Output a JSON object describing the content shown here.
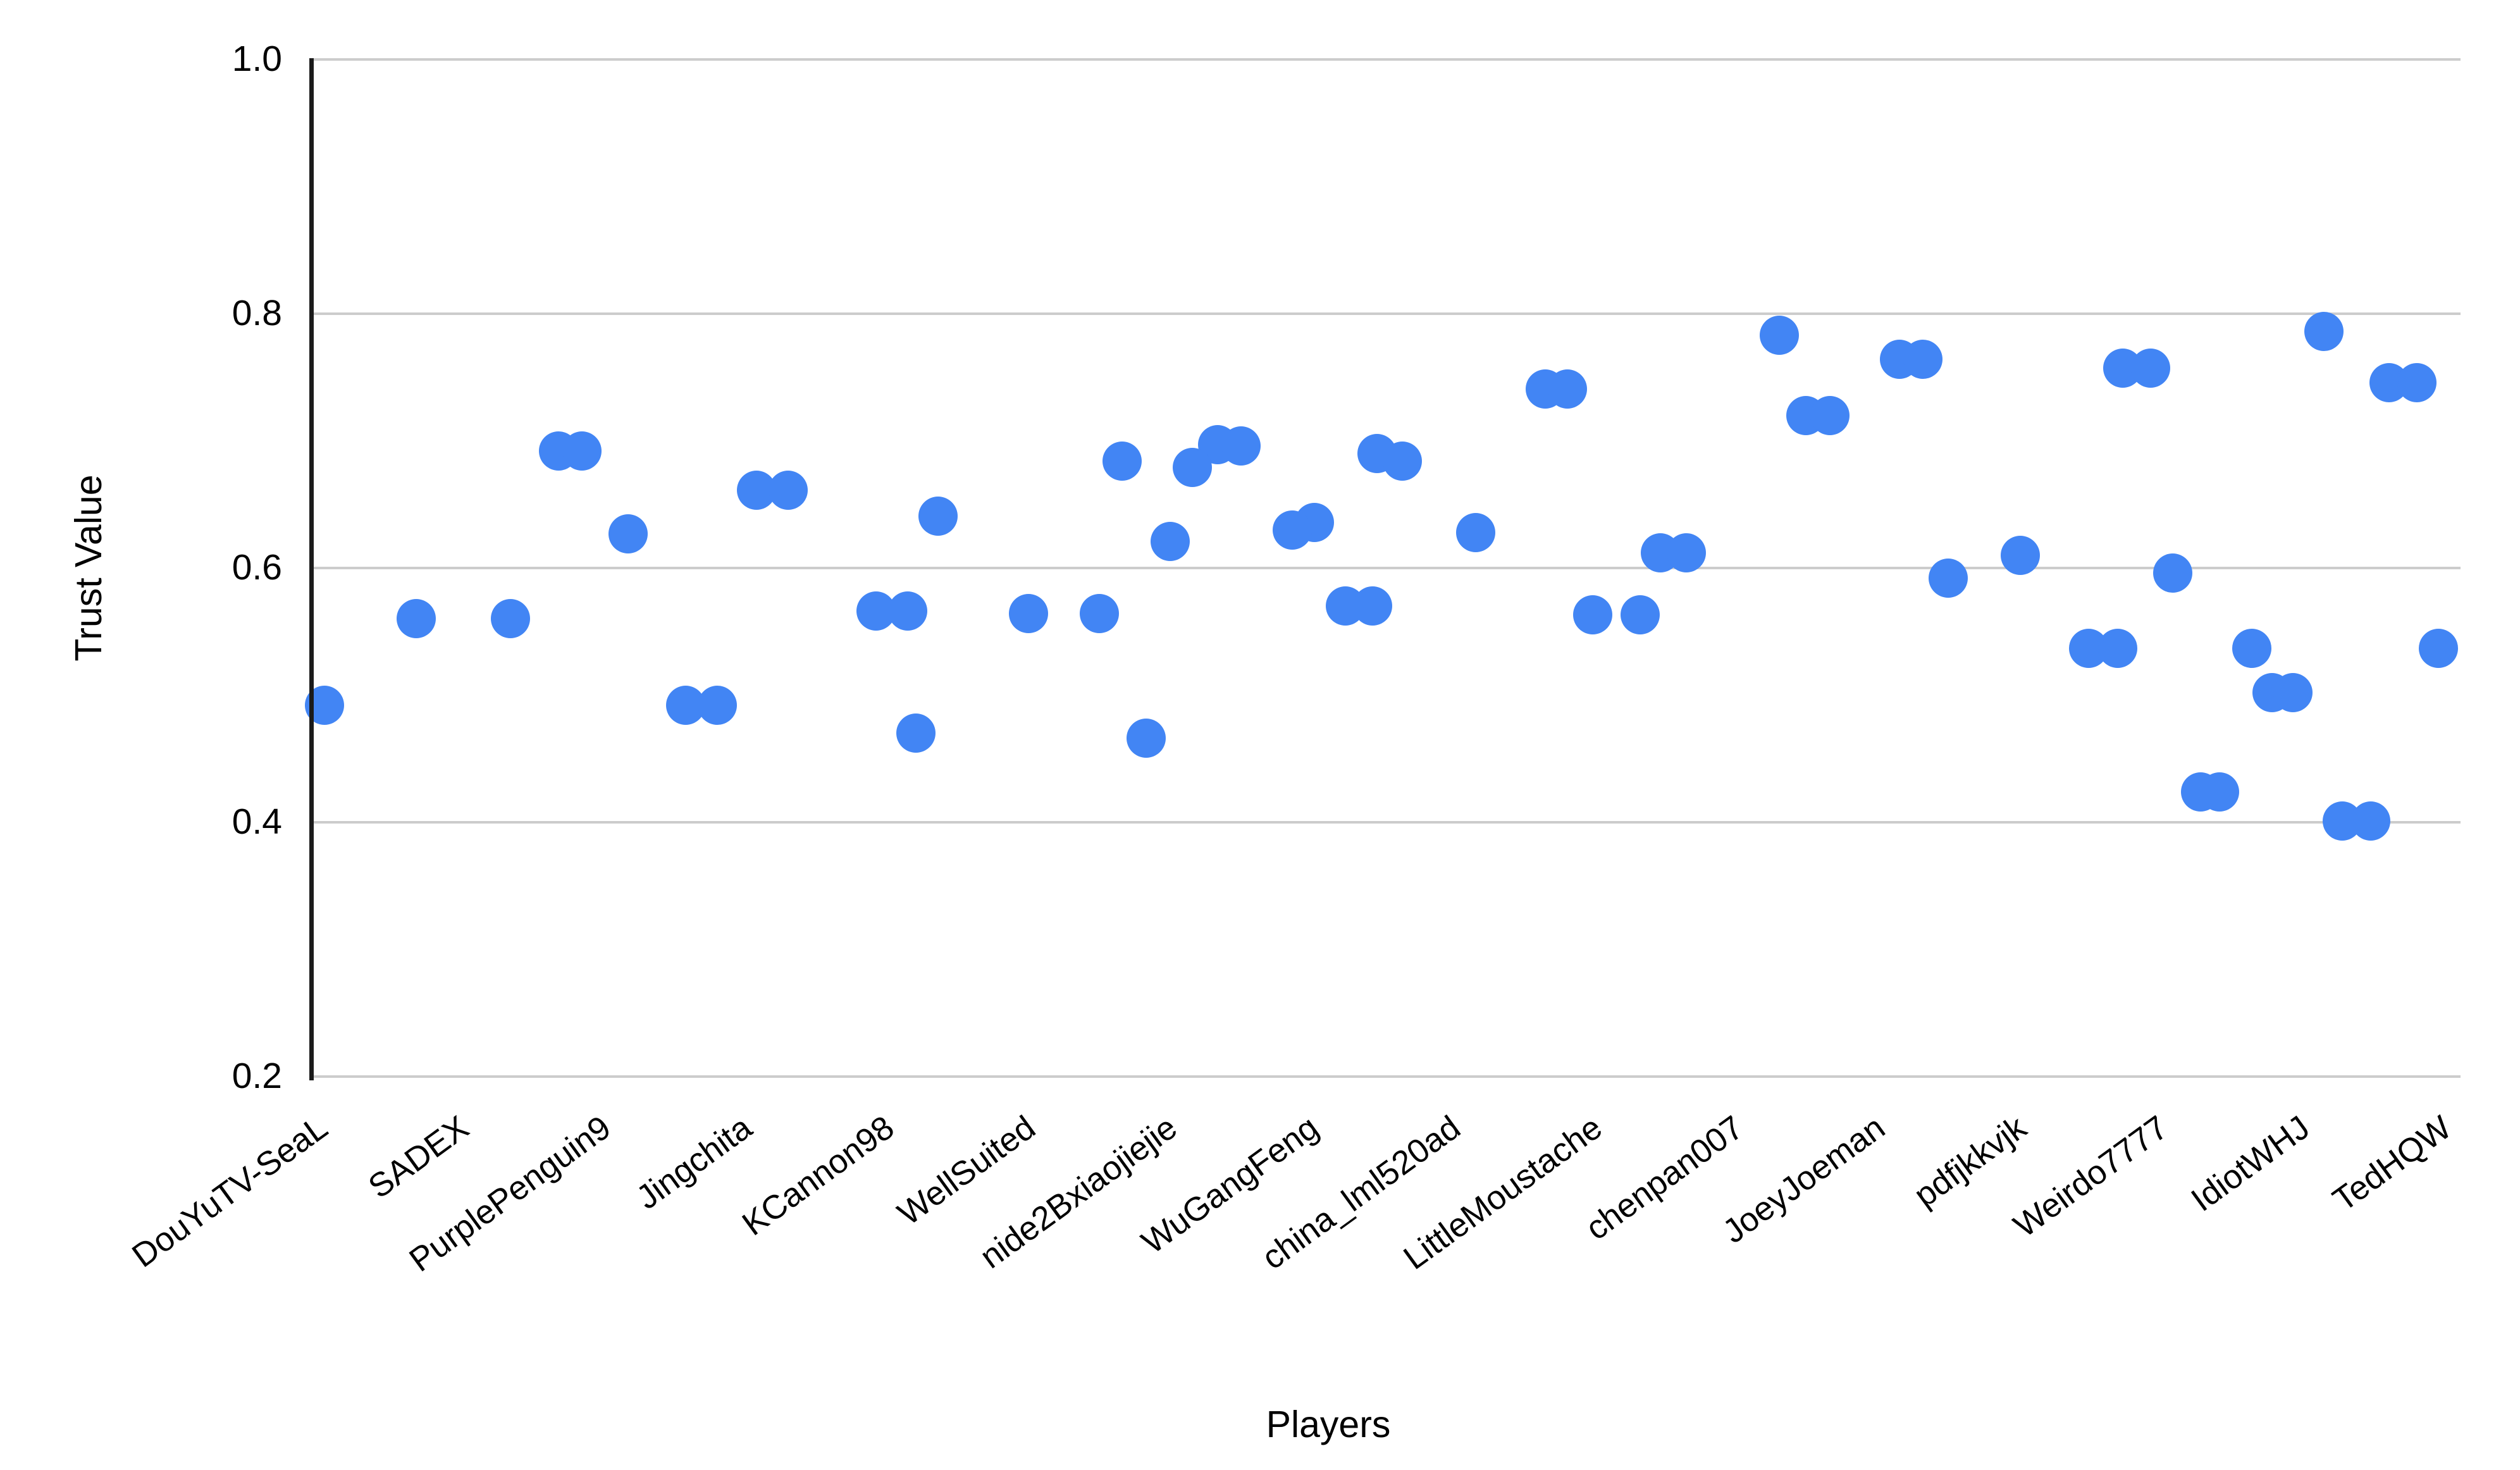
{
  "chart_data": {
    "type": "scatter",
    "title": "",
    "xlabel": "Players",
    "ylabel": "Trust Value",
    "ylim": [
      0.2,
      1.0
    ],
    "ytick_values": [
      1.0,
      0.8,
      0.6,
      0.4,
      0.2
    ],
    "ytick_labels": [
      "1.0",
      "0.8",
      "0.6",
      "0.4",
      "0.2"
    ],
    "grid": true,
    "legend": "none",
    "point_color": "#4285f4",
    "categories": [
      "DouYuTV-SeaL",
      "SADEX",
      "PurplePenguin9",
      "Jingchita",
      "KCannon98",
      "WellSuited",
      "nide2Bxiaojiejie",
      "WuGangFeng",
      "china_lml520ad",
      "LittleMoustache",
      "chenpan007",
      "JoeyJoeman",
      "pdfjkkvjk",
      "Weirdo7777",
      "IdiotWHJ",
      "TedHQW"
    ],
    "players": [
      {
        "name": "DouYuTV-SeaL",
        "values": [
          0.492
        ],
        "points": [
          {
            "x": 513,
            "v": 0.492
          }
        ]
      },
      {
        "name": "SADEX",
        "values": [
          0.56,
          0.56
        ],
        "points": [
          {
            "x": 658,
            "v": 0.56
          },
          {
            "x": 807,
            "v": 0.56
          }
        ]
      },
      {
        "name": "PurplePenguin9",
        "values": [
          0.692,
          0.692,
          0.627
        ],
        "points": [
          {
            "x": 883,
            "v": 0.692
          },
          {
            "x": 920,
            "v": 0.692
          },
          {
            "x": 993,
            "v": 0.627
          }
        ]
      },
      {
        "name": "Jingchita",
        "values": [
          0.661,
          0.661,
          0.492,
          0.492
        ],
        "points": [
          {
            "x": 1196,
            "v": 0.661
          },
          {
            "x": 1246,
            "v": 0.661
          },
          {
            "x": 1084,
            "v": 0.492
          },
          {
            "x": 1134,
            "v": 0.492
          }
        ]
      },
      {
        "name": "KCannon98",
        "values": [
          0.641,
          0.566,
          0.566,
          0.47
        ],
        "points": [
          {
            "x": 1483,
            "v": 0.641
          },
          {
            "x": 1385,
            "v": 0.566
          },
          {
            "x": 1435,
            "v": 0.566
          },
          {
            "x": 1448,
            "v": 0.47
          }
        ]
      },
      {
        "name": "WellSuited",
        "values": [
          0.564,
          0.564
        ],
        "points": [
          {
            "x": 1626,
            "v": 0.564
          },
          {
            "x": 1738,
            "v": 0.564
          }
        ]
      },
      {
        "name": "nide2Bxiaojiejie",
        "values": [
          0.697,
          0.696,
          0.684,
          0.679,
          0.621,
          0.466
        ],
        "points": [
          {
            "x": 1925,
            "v": 0.697
          },
          {
            "x": 1962,
            "v": 0.696
          },
          {
            "x": 1774,
            "v": 0.684
          },
          {
            "x": 1885,
            "v": 0.679
          },
          {
            "x": 1850,
            "v": 0.621
          },
          {
            "x": 1812,
            "v": 0.466
          }
        ]
      },
      {
        "name": "WuGangFeng",
        "values": [
          0.69,
          0.684,
          0.636,
          0.63,
          0.57,
          0.57
        ],
        "points": [
          {
            "x": 2177,
            "v": 0.69
          },
          {
            "x": 2217,
            "v": 0.684
          },
          {
            "x": 2078,
            "v": 0.636
          },
          {
            "x": 2043,
            "v": 0.63
          },
          {
            "x": 2127,
            "v": 0.57
          },
          {
            "x": 2170,
            "v": 0.57
          }
        ]
      },
      {
        "name": "china_lml520ad",
        "values": [
          0.628
        ],
        "points": [
          {
            "x": 2333,
            "v": 0.628
          }
        ]
      },
      {
        "name": "LittleMoustache",
        "values": [
          0.741,
          0.741,
          0.563,
          0.563
        ],
        "points": [
          {
            "x": 2443,
            "v": 0.741
          },
          {
            "x": 2478,
            "v": 0.741
          },
          {
            "x": 2518,
            "v": 0.563
          },
          {
            "x": 2593,
            "v": 0.563
          }
        ]
      },
      {
        "name": "chenpan007",
        "values": [
          0.783,
          0.72,
          0.72,
          0.612,
          0.612
        ],
        "points": [
          {
            "x": 2813,
            "v": 0.783
          },
          {
            "x": 2855,
            "v": 0.72
          },
          {
            "x": 2893,
            "v": 0.72
          },
          {
            "x": 2625,
            "v": 0.612
          },
          {
            "x": 2666,
            "v": 0.612
          }
        ]
      },
      {
        "name": "JoeyJoeman",
        "values": [
          0.764,
          0.764,
          0.592
        ],
        "points": [
          {
            "x": 3003,
            "v": 0.764
          },
          {
            "x": 3040,
            "v": 0.764
          },
          {
            "x": 3080,
            "v": 0.592
          }
        ]
      },
      {
        "name": "pdfjkkvjk",
        "values": [
          0.61,
          0.537,
          0.537
        ],
        "points": [
          {
            "x": 3194,
            "v": 0.61
          },
          {
            "x": 3302,
            "v": 0.537
          },
          {
            "x": 3348,
            "v": 0.537
          }
        ]
      },
      {
        "name": "Weirdo7777",
        "values": [
          0.757,
          0.757,
          0.596,
          0.424,
          0.424
        ],
        "points": [
          {
            "x": 3356,
            "v": 0.757
          },
          {
            "x": 3400,
            "v": 0.757
          },
          {
            "x": 3435,
            "v": 0.596
          },
          {
            "x": 3479,
            "v": 0.424
          },
          {
            "x": 3509,
            "v": 0.424
          }
        ]
      },
      {
        "name": "IdiotWHJ",
        "values": [
          0.786,
          0.537,
          0.502,
          0.502,
          0.401,
          0.401
        ],
        "points": [
          {
            "x": 3674,
            "v": 0.786
          },
          {
            "x": 3560,
            "v": 0.537
          },
          {
            "x": 3592,
            "v": 0.502
          },
          {
            "x": 3625,
            "v": 0.502
          },
          {
            "x": 3703,
            "v": 0.401
          },
          {
            "x": 3748,
            "v": 0.401
          }
        ]
      },
      {
        "name": "TedHQW",
        "values": [
          0.746,
          0.746,
          0.537
        ],
        "points": [
          {
            "x": 3777,
            "v": 0.746
          },
          {
            "x": 3821,
            "v": 0.746
          },
          {
            "x": 3855,
            "v": 0.537
          }
        ]
      }
    ]
  },
  "colors": {
    "point": "#4285f4",
    "gridline": "#cccccc",
    "axis_line": "#1b1b1b",
    "text": "#000000",
    "background": "#ffffff"
  }
}
